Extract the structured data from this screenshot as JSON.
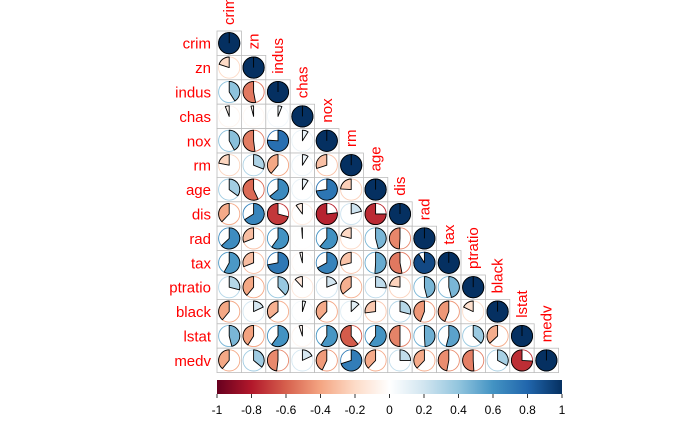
{
  "chart_data": {
    "type": "heatmap",
    "method": "pie",
    "layout": "lower-triangle",
    "variables": [
      "crim",
      "zn",
      "indus",
      "chas",
      "nox",
      "rm",
      "age",
      "dis",
      "rad",
      "tax",
      "ptratio",
      "black",
      "lstat",
      "medv"
    ],
    "matrix": [
      [
        1,
        -0.2,
        0.41,
        -0.06,
        0.42,
        -0.22,
        0.35,
        -0.38,
        0.63,
        0.58,
        0.29,
        -0.39,
        0.46,
        -0.39
      ],
      [
        -0.2,
        1,
        -0.53,
        -0.04,
        -0.52,
        0.31,
        -0.57,
        0.66,
        -0.31,
        -0.31,
        -0.39,
        0.18,
        -0.41,
        0.36
      ],
      [
        0.41,
        -0.53,
        1,
        0.06,
        0.76,
        -0.39,
        0.64,
        -0.71,
        0.6,
        0.72,
        0.38,
        -0.36,
        0.6,
        -0.48
      ],
      [
        -0.06,
        -0.04,
        0.06,
        1,
        0.09,
        0.09,
        0.09,
        -0.1,
        -0.01,
        -0.04,
        -0.12,
        0.05,
        -0.05,
        0.18
      ],
      [
        0.42,
        -0.52,
        0.76,
        0.09,
        1,
        -0.3,
        0.73,
        -0.77,
        0.61,
        0.67,
        0.19,
        -0.38,
        0.59,
        -0.43
      ],
      [
        -0.22,
        0.31,
        -0.39,
        0.09,
        -0.3,
        1,
        -0.24,
        0.21,
        -0.21,
        -0.29,
        -0.36,
        0.13,
        -0.61,
        0.7
      ],
      [
        0.35,
        -0.57,
        0.64,
        0.09,
        0.73,
        -0.24,
        1,
        -0.75,
        0.46,
        0.51,
        0.26,
        -0.27,
        0.6,
        -0.38
      ],
      [
        -0.38,
        0.66,
        -0.71,
        -0.1,
        -0.77,
        0.21,
        -0.75,
        1,
        -0.49,
        -0.53,
        -0.23,
        0.29,
        -0.5,
        0.25
      ],
      [
        0.63,
        -0.31,
        0.6,
        -0.01,
        0.61,
        -0.21,
        0.46,
        -0.49,
        1,
        0.91,
        0.46,
        -0.44,
        0.49,
        -0.38
      ],
      [
        0.58,
        -0.31,
        0.72,
        -0.04,
        0.67,
        -0.29,
        0.51,
        -0.53,
        0.91,
        1,
        0.46,
        -0.44,
        0.54,
        -0.47
      ],
      [
        0.29,
        -0.39,
        0.38,
        -0.12,
        0.19,
        -0.36,
        0.26,
        -0.23,
        0.46,
        0.46,
        1,
        -0.18,
        0.37,
        -0.51
      ],
      [
        -0.39,
        0.18,
        -0.36,
        0.05,
        -0.38,
        0.13,
        -0.27,
        0.29,
        -0.44,
        -0.44,
        -0.18,
        1,
        -0.37,
        0.33
      ],
      [
        0.46,
        -0.41,
        0.6,
        -0.05,
        0.59,
        -0.61,
        0.6,
        -0.5,
        0.49,
        0.54,
        0.37,
        -0.37,
        1,
        -0.74
      ],
      [
        -0.39,
        0.36,
        -0.48,
        0.18,
        -0.43,
        0.7,
        -0.38,
        0.25,
        -0.38,
        -0.47,
        -0.51,
        0.33,
        -0.74,
        1
      ]
    ],
    "colorbar": {
      "ticks": [
        "-1",
        "-0.8",
        "-0.6",
        "-0.4",
        "-0.2",
        "0",
        "0.2",
        "0.4",
        "0.6",
        "0.8",
        "1"
      ],
      "range": [
        -1,
        1
      ],
      "colors": [
        "#67001F",
        "#B2182B",
        "#D6604D",
        "#F4A582",
        "#FDDBC7",
        "#FFFFFF",
        "#D1E5F0",
        "#92C5DE",
        "#4393C3",
        "#2166AC",
        "#053061"
      ]
    },
    "label_color": "#FF0000",
    "grid": true
  }
}
